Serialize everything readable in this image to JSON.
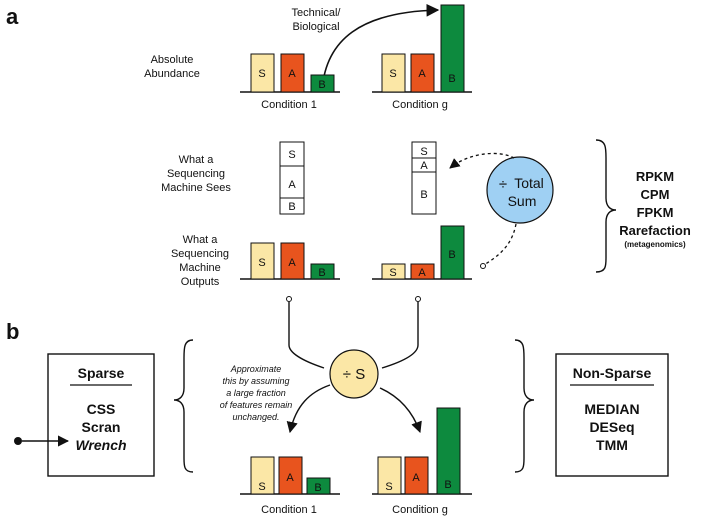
{
  "panel_a": {
    "letter": "a",
    "arrow_label": [
      "Technical/",
      "Biological"
    ],
    "row_labels": {
      "absolute": [
        "Absolute",
        "Abundance"
      ],
      "sees": [
        "What a",
        "Sequencing",
        "Machine Sees"
      ],
      "outputs": [
        "What a",
        "Sequencing",
        "Machine",
        "Outputs"
      ]
    },
    "conditions": [
      "Condition 1",
      "Condition g"
    ],
    "bar_letters": [
      "S",
      "A",
      "B"
    ],
    "total_sum": {
      "symbol": "÷",
      "line1": "Total",
      "line2": "Sum"
    },
    "methods": [
      "RPKM",
      "CPM",
      "FPKM",
      "Rarefaction"
    ],
    "methods_note": "(metagenomics)"
  },
  "panel_b": {
    "letter": "b",
    "divide_label": "÷ S",
    "note": [
      "Approximate",
      "this by assuming",
      "a large fraction",
      "of features remain",
      "unchanged."
    ],
    "conditions": [
      "Condition 1",
      "Condition g"
    ],
    "sparse": {
      "title": "Sparse",
      "items": [
        "CSS",
        "Scran"
      ],
      "item_italic": "Wrench"
    },
    "nonsparse": {
      "title": "Non-Sparse",
      "items": [
        "MEDIAN",
        "DESeq",
        "TMM"
      ]
    }
  },
  "colors": {
    "S": "#fbe7a6",
    "A": "#e8541e",
    "B": "#0d8a3e",
    "circle": "#9fd0f3",
    "circle_b": "#fbe7a6"
  }
}
